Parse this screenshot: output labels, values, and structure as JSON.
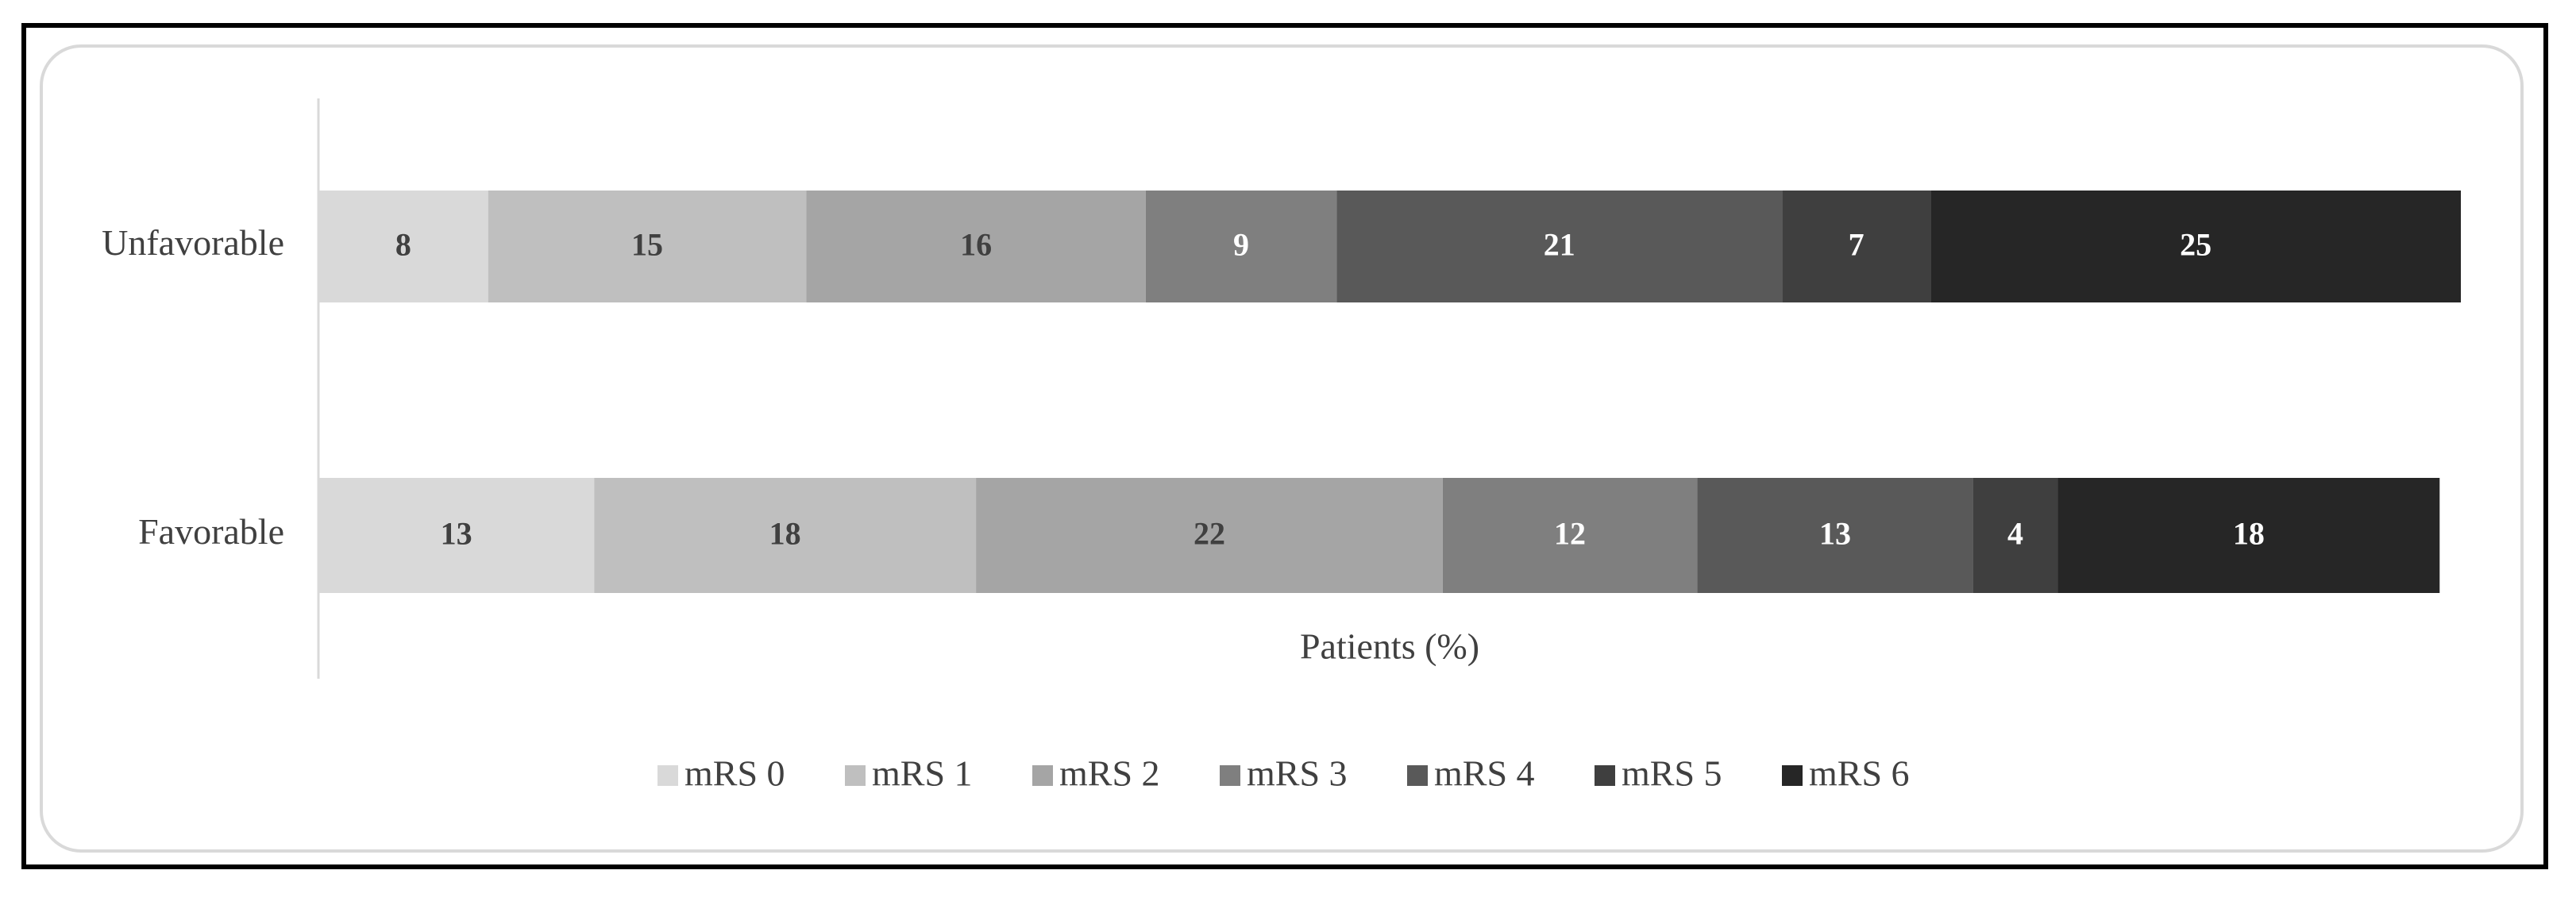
{
  "chart_data": {
    "type": "stacked-bar-horizontal",
    "x_label": "Patients (%)",
    "categories": [
      "Unfavorable",
      "Favorable"
    ],
    "xlim": [
      0,
      101
    ],
    "series": [
      {
        "name": "mRS 0",
        "color": "#d9d9d9",
        "values": [
          8,
          13
        ]
      },
      {
        "name": "mRS 1",
        "color": "#bfbfbf",
        "values": [
          15,
          18
        ]
      },
      {
        "name": "mRS 2",
        "color": "#a5a5a5",
        "values": [
          16,
          22
        ]
      },
      {
        "name": "mRS 3",
        "color": "#7f7f7f",
        "values": [
          9,
          12
        ]
      },
      {
        "name": "mRS 4",
        "color": "#595959",
        "values": [
          21,
          13
        ]
      },
      {
        "name": "mRS 5",
        "color": "#3f3f3f",
        "values": [
          7,
          4
        ]
      },
      {
        "name": "mRS 6",
        "color": "#262626",
        "values": [
          25,
          18
        ]
      }
    ],
    "legend": "bottom"
  }
}
